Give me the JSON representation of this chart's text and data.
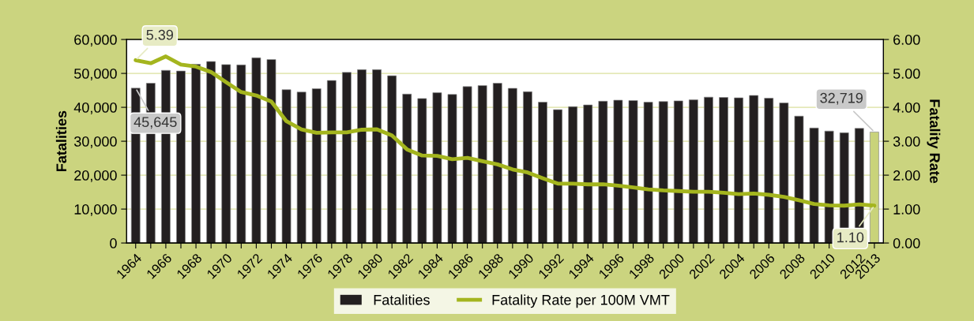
{
  "chart_data": {
    "type": "bar",
    "categories": [
      "1964",
      null,
      "1966",
      null,
      "1968",
      null,
      "1970",
      null,
      "1972",
      null,
      "1974",
      null,
      "1976",
      null,
      "1978",
      null,
      "1980",
      null,
      "1982",
      null,
      "1984",
      null,
      "1986",
      null,
      "1988",
      null,
      "1990",
      null,
      "1992",
      null,
      "1994",
      null,
      "1996",
      null,
      "1998",
      null,
      "2000",
      null,
      "2002",
      null,
      "2004",
      null,
      "2006",
      null,
      "2008",
      null,
      "2010",
      null,
      "2012",
      "2013"
    ],
    "ylabel": "Fatalities",
    "y2label": "Fatality Rate",
    "ylim": [
      0,
      60000
    ],
    "yticks": [
      {
        "value": 0,
        "label": "0"
      },
      {
        "value": 10000,
        "label": "10,000"
      },
      {
        "value": 20000,
        "label": "20,000"
      },
      {
        "value": 30000,
        "label": "30,000"
      },
      {
        "value": 40000,
        "label": "40,000"
      },
      {
        "value": 50000,
        "label": "50,000"
      },
      {
        "value": 60000,
        "label": "60,000"
      }
    ],
    "y2lim": [
      0,
      6
    ],
    "y2ticks": [
      {
        "value": 0,
        "label": "0.00"
      },
      {
        "value": 1,
        "label": "1.00"
      },
      {
        "value": 2,
        "label": "2.00"
      },
      {
        "value": 3,
        "label": "3.00"
      },
      {
        "value": 4,
        "label": "4.00"
      },
      {
        "value": 5,
        "label": "5.00"
      },
      {
        "value": 6,
        "label": "6.00"
      }
    ],
    "grid": "y",
    "legend": "bottom",
    "series": [
      {
        "name": "Fatalities",
        "color": "#231f20",
        "colors": [
          "#231f20",
          "#231f20",
          "#231f20",
          "#231f20",
          "#231f20",
          "#231f20",
          "#231f20",
          "#231f20",
          "#231f20",
          "#231f20",
          "#231f20",
          "#231f20",
          "#231f20",
          "#231f20",
          "#231f20",
          "#231f20",
          "#231f20",
          "#231f20",
          "#231f20",
          "#231f20",
          "#231f20",
          "#231f20",
          "#231f20",
          "#231f20",
          "#231f20",
          "#231f20",
          "#231f20",
          "#231f20",
          "#231f20",
          "#231f20",
          "#231f20",
          "#231f20",
          "#231f20",
          "#231f20",
          "#231f20",
          "#231f20",
          "#231f20",
          "#231f20",
          "#231f20",
          "#231f20",
          "#231f20",
          "#231f20",
          "#231f20",
          "#231f20",
          "#231f20",
          "#231f20",
          "#231f20",
          "#231f20",
          "#231f20",
          "#c9d37a"
        ],
        "values": [
          45645,
          47100,
          50900,
          50700,
          52700,
          53500,
          52600,
          52500,
          54600,
          54100,
          45200,
          44500,
          45500,
          47900,
          50300,
          51100,
          51100,
          49300,
          43900,
          42600,
          44300,
          43800,
          46100,
          46400,
          47100,
          45600,
          44600,
          41500,
          39300,
          40200,
          40700,
          41800,
          42100,
          42000,
          41500,
          41700,
          41900,
          42200,
          43000,
          42900,
          42800,
          43500,
          42700,
          41300,
          37400,
          33900,
          33000,
          32500,
          33800,
          32719
        ],
        "value_labels": [
          "45,645",
          null,
          null,
          null,
          null,
          null,
          null,
          null,
          null,
          null,
          null,
          null,
          null,
          null,
          null,
          null,
          null,
          null,
          null,
          null,
          null,
          null,
          null,
          null,
          null,
          null,
          null,
          null,
          null,
          null,
          null,
          null,
          null,
          null,
          null,
          null,
          null,
          null,
          null,
          null,
          null,
          null,
          null,
          null,
          null,
          null,
          null,
          null,
          null,
          "32,719"
        ]
      },
      {
        "name": "Fatality Rate per 100M VMT",
        "type": "line",
        "axis": "y2",
        "color": "#a4b51e",
        "values": [
          5.39,
          5.3,
          5.5,
          5.26,
          5.2,
          5.04,
          4.74,
          4.45,
          4.35,
          4.17,
          3.59,
          3.35,
          3.25,
          3.26,
          3.26,
          3.34,
          3.35,
          3.17,
          2.76,
          2.58,
          2.57,
          2.47,
          2.51,
          2.41,
          2.32,
          2.17,
          2.08,
          1.91,
          1.75,
          1.75,
          1.73,
          1.73,
          1.69,
          1.64,
          1.58,
          1.55,
          1.53,
          1.51,
          1.51,
          1.48,
          1.44,
          1.46,
          1.42,
          1.36,
          1.26,
          1.15,
          1.11,
          1.1,
          1.14,
          1.1
        ],
        "value_labels": [
          "5.39",
          null,
          null,
          null,
          null,
          null,
          null,
          null,
          null,
          null,
          null,
          null,
          null,
          null,
          null,
          null,
          null,
          null,
          null,
          null,
          null,
          null,
          null,
          null,
          null,
          null,
          null,
          null,
          null,
          null,
          null,
          null,
          null,
          null,
          null,
          null,
          null,
          null,
          null,
          null,
          null,
          null,
          null,
          null,
          null,
          null,
          null,
          null,
          null,
          "1.10"
        ]
      }
    ]
  }
}
